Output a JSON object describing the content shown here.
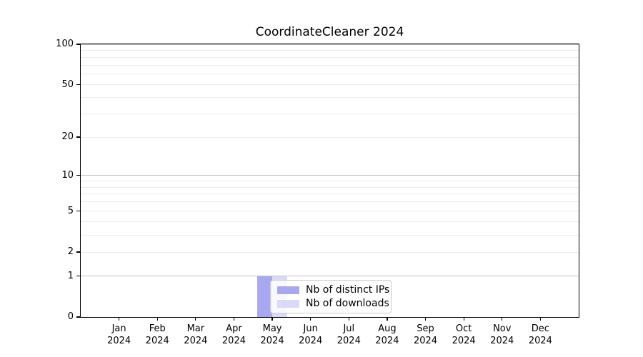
{
  "title": "CoordinateCleaner 2024",
  "colors": {
    "distinct_ips": "#a8a8f0",
    "downloads": "#d9d9f8",
    "grid_major": "#c3c3c3",
    "grid_minor": "#ebebeb",
    "axis": "#000000",
    "legend_border": "#cccccc"
  },
  "chart_data": {
    "type": "bar",
    "title": "CoordinateCleaner 2024",
    "categories": [
      "Jan 2024",
      "Feb 2024",
      "Mar 2024",
      "Apr 2024",
      "May 2024",
      "Jun 2024",
      "Jul 2024",
      "Aug 2024",
      "Sep 2024",
      "Oct 2024",
      "Nov 2024",
      "Dec 2024"
    ],
    "series": [
      {
        "name": "Nb of distinct IPs",
        "color": "#a8a8f0",
        "values": [
          0,
          0,
          0,
          0,
          1,
          0,
          0,
          0,
          0,
          0,
          0,
          0
        ]
      },
      {
        "name": "Nb of downloads",
        "color": "#d9d9f8",
        "values": [
          0,
          0,
          0,
          0,
          1,
          0,
          0,
          0,
          0,
          0,
          0,
          0
        ]
      }
    ],
    "xlabel": "",
    "ylabel": "",
    "yscale": "log1p",
    "ylim": [
      0,
      100
    ],
    "y_tick_labels": [
      "0",
      "1",
      "2",
      "5",
      "10",
      "20",
      "50",
      "100"
    ],
    "y_tick_values": [
      0,
      1,
      2,
      5,
      10,
      20,
      50,
      100
    ],
    "y_major_gridlines": [
      1,
      10,
      100
    ],
    "y_minor_gridlines": [
      2,
      3,
      4,
      5,
      6,
      7,
      8,
      9,
      20,
      30,
      40,
      50,
      60,
      70,
      80,
      90
    ],
    "grid": "on",
    "legend_position": "lower-center-overlay"
  }
}
